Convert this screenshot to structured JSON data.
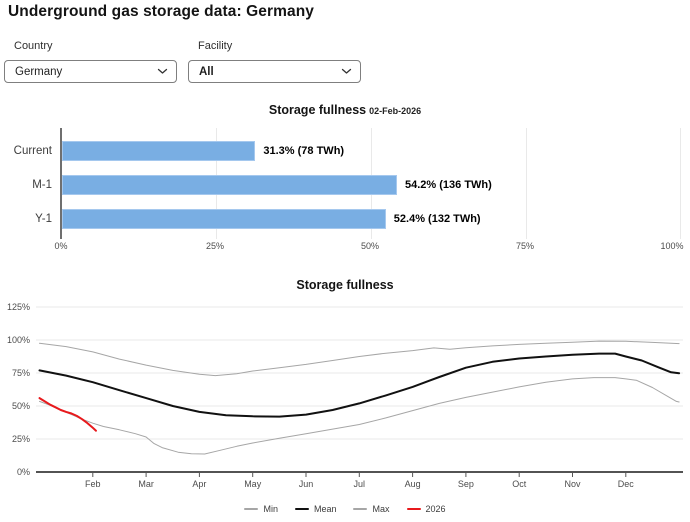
{
  "page_title": "Underground gas storage data: Germany",
  "controls": {
    "country": {
      "label": "Country",
      "value": "Germany"
    },
    "facility": {
      "label": "Facility",
      "value": "All"
    }
  },
  "colors": {
    "bar_blue": "#79aee3",
    "bar_blue_border": "#a5c8ee",
    "gridline": "#e9e9e9",
    "axis_dark": "#1a1a1a",
    "tick_text": "#4c4c4c",
    "min_max_gray": "#a6a6a6",
    "mean_black": "#111111",
    "year_red": "#e8191c"
  },
  "chart_data": [
    {
      "type": "bar",
      "orientation": "horizontal",
      "title": "Storage fullness",
      "subtitle_date": "02-Feb-2026",
      "categories": [
        "Current",
        "M-1",
        "Y-1"
      ],
      "values_pct": [
        31.3,
        54.2,
        52.4
      ],
      "values_twh": [
        78,
        136,
        132
      ],
      "labels": [
        "31.3% (78 TWh)",
        "54.2% (136 TWh)",
        "52.4% (132 TWh)"
      ],
      "xlim": [
        0,
        100
      ],
      "xticks": [
        {
          "v": 0,
          "label": "0%"
        },
        {
          "v": 25,
          "label": "25%"
        },
        {
          "v": 50,
          "label": "50%"
        },
        {
          "v": 75,
          "label": "75%"
        },
        {
          "v": 100,
          "label": "100%"
        }
      ],
      "bar_color": "#79aee3",
      "grid": true
    },
    {
      "type": "line",
      "title": "Storage fullness",
      "ylim": [
        0,
        125
      ],
      "yticks": [
        {
          "v": 0,
          "label": "0%"
        },
        {
          "v": 25,
          "label": "25%"
        },
        {
          "v": 50,
          "label": "50%"
        },
        {
          "v": 75,
          "label": "75%"
        },
        {
          "v": 100,
          "label": "100%"
        },
        {
          "v": 125,
          "label": "125%"
        }
      ],
      "x_unit": "months, 0 = Jan 1 through 12 = Dec 31",
      "month_labels": [
        "Feb",
        "Mar",
        "Apr",
        "May",
        "Jun",
        "Jul",
        "Aug",
        "Sep",
        "Oct",
        "Nov",
        "Dec"
      ],
      "grid": true,
      "legend_position": "bottom",
      "series": [
        {
          "name": "Min",
          "color": "#a6a6a6",
          "width": 1,
          "points": [
            [
              0,
              53.5
            ],
            [
              0.2,
              50.5
            ],
            [
              0.4,
              47
            ],
            [
              0.6,
              43.5
            ],
            [
              0.8,
              40
            ],
            [
              1,
              37
            ],
            [
              1.2,
              34.5
            ],
            [
              1.5,
              32
            ],
            [
              1.8,
              29
            ],
            [
              2,
              26.5
            ],
            [
              2.15,
              21.5
            ],
            [
              2.3,
              18.5
            ],
            [
              2.6,
              15
            ],
            [
              2.85,
              13.8
            ],
            [
              3.1,
              13.6
            ],
            [
              3.4,
              16.5
            ],
            [
              3.7,
              19.5
            ],
            [
              4,
              22
            ],
            [
              4.5,
              25.5
            ],
            [
              5,
              29
            ],
            [
              5.5,
              32.5
            ],
            [
              6,
              36
            ],
            [
              6.5,
              41
            ],
            [
              7,
              46.5
            ],
            [
              7.5,
              52
            ],
            [
              8,
              56.5
            ],
            [
              8.5,
              60.5
            ],
            [
              9,
              64.5
            ],
            [
              9.5,
              68
            ],
            [
              10,
              70.5
            ],
            [
              10.4,
              71.5
            ],
            [
              10.8,
              71.5
            ],
            [
              11,
              70.5
            ],
            [
              11.2,
              69.5
            ],
            [
              11.5,
              64
            ],
            [
              11.8,
              57
            ],
            [
              11.95,
              53.5
            ],
            [
              12,
              53
            ]
          ]
        },
        {
          "name": "Max",
          "color": "#a6a6a6",
          "width": 1,
          "points": [
            [
              0,
              97.5
            ],
            [
              0.5,
              95
            ],
            [
              1,
              91
            ],
            [
              1.5,
              85.5
            ],
            [
              2,
              81
            ],
            [
              2.5,
              77
            ],
            [
              3,
              74
            ],
            [
              3.3,
              73
            ],
            [
              3.7,
              74.5
            ],
            [
              4,
              76.5
            ],
            [
              4.5,
              79
            ],
            [
              5,
              81.5
            ],
            [
              5.5,
              84.5
            ],
            [
              6,
              87.5
            ],
            [
              6.5,
              90
            ],
            [
              7,
              92
            ],
            [
              7.4,
              94
            ],
            [
              7.7,
              93
            ],
            [
              8,
              94.2
            ],
            [
              8.5,
              95.5
            ],
            [
              9,
              96.7
            ],
            [
              9.5,
              97.5
            ],
            [
              10,
              98.3
            ],
            [
              10.5,
              99.2
            ],
            [
              11,
              99
            ],
            [
              11.5,
              98.2
            ],
            [
              12,
              97.3
            ]
          ]
        },
        {
          "name": "Mean",
          "color": "#111111",
          "width": 2,
          "points": [
            [
              0,
              77
            ],
            [
              0.5,
              73
            ],
            [
              1,
              68
            ],
            [
              1.5,
              62
            ],
            [
              2,
              56
            ],
            [
              2.5,
              50
            ],
            [
              3,
              45.5
            ],
            [
              3.5,
              43
            ],
            [
              4,
              42.2
            ],
            [
              4.5,
              42
            ],
            [
              5,
              43.5
            ],
            [
              5.5,
              47
            ],
            [
              6,
              52
            ],
            [
              6.5,
              58
            ],
            [
              7,
              64.5
            ],
            [
              7.5,
              72
            ],
            [
              8,
              79
            ],
            [
              8.5,
              83.5
            ],
            [
              9,
              86
            ],
            [
              9.5,
              87.5
            ],
            [
              10,
              88.8
            ],
            [
              10.5,
              89.7
            ],
            [
              10.8,
              89.7
            ],
            [
              11,
              87.5
            ],
            [
              11.3,
              84.5
            ],
            [
              11.6,
              79.5
            ],
            [
              11.85,
              75.5
            ],
            [
              12,
              74.8
            ]
          ]
        },
        {
          "name": "2026",
          "color": "#e8191c",
          "width": 2,
          "points": [
            [
              0,
              56
            ],
            [
              0.1,
              53.5
            ],
            [
              0.2,
              51
            ],
            [
              0.3,
              49
            ],
            [
              0.4,
              47
            ],
            [
              0.5,
              45.5
            ],
            [
              0.6,
              44.3
            ],
            [
              0.7,
              42.5
            ],
            [
              0.8,
              40
            ],
            [
              0.9,
              37
            ],
            [
              1,
              33.5
            ],
            [
              1.06,
              31.3
            ]
          ]
        }
      ],
      "legend": [
        {
          "label": "Min",
          "color": "#a6a6a6"
        },
        {
          "label": "Mean",
          "color": "#111111"
        },
        {
          "label": "Max",
          "color": "#a6a6a6"
        },
        {
          "label": "2026",
          "color": "#e8191c"
        }
      ]
    }
  ]
}
